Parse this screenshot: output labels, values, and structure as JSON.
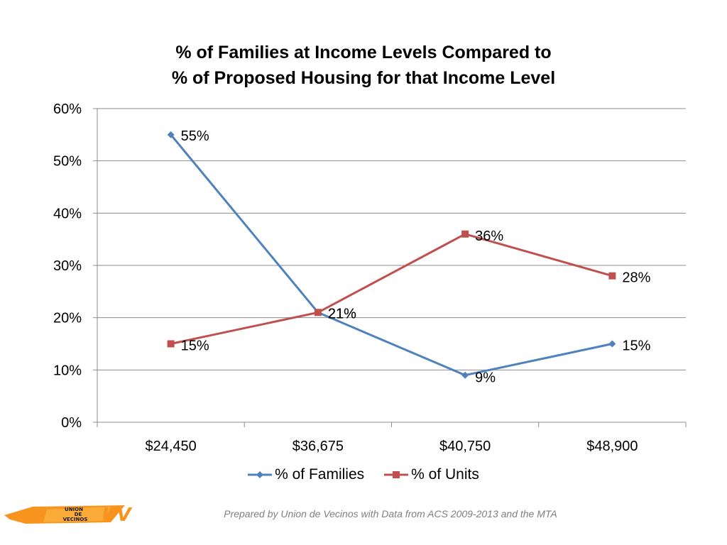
{
  "chart_data": {
    "type": "line",
    "title": [
      "% of Families at Income Levels Compared to",
      "% of Proposed Housing for that Income Level"
    ],
    "categories": [
      "$24,450",
      "$36,675",
      "$40,750",
      "$48,900"
    ],
    "ylim": [
      0,
      0.6
    ],
    "yticks": [
      0,
      0.1,
      0.2,
      0.3,
      0.4,
      0.5,
      0.6
    ],
    "ytick_labels": [
      "0%",
      "10%",
      "20%",
      "30%",
      "40%",
      "50%",
      "60%"
    ],
    "grid": true,
    "legend_position": "bottom",
    "series": [
      {
        "name": "% of Families",
        "values": [
          0.55,
          0.21,
          0.09,
          0.15
        ],
        "labels": [
          "55%",
          "21%",
          "9%",
          "15%"
        ],
        "color": "#4F81BD",
        "marker": "diamond"
      },
      {
        "name": "% of Units",
        "values": [
          0.15,
          0.21,
          0.36,
          0.28
        ],
        "labels": [
          "15%",
          "21%",
          "36%",
          "28%"
        ],
        "color": "#C0504D",
        "marker": "square"
      }
    ]
  },
  "footer": "Prepared by Union de Vecinos with Data from ACS 2009-2013 and the MTA",
  "logo": {
    "text_lines": [
      "UNION",
      "DE",
      "VECINOS"
    ],
    "mark": "UV",
    "color": "#F7941D"
  }
}
